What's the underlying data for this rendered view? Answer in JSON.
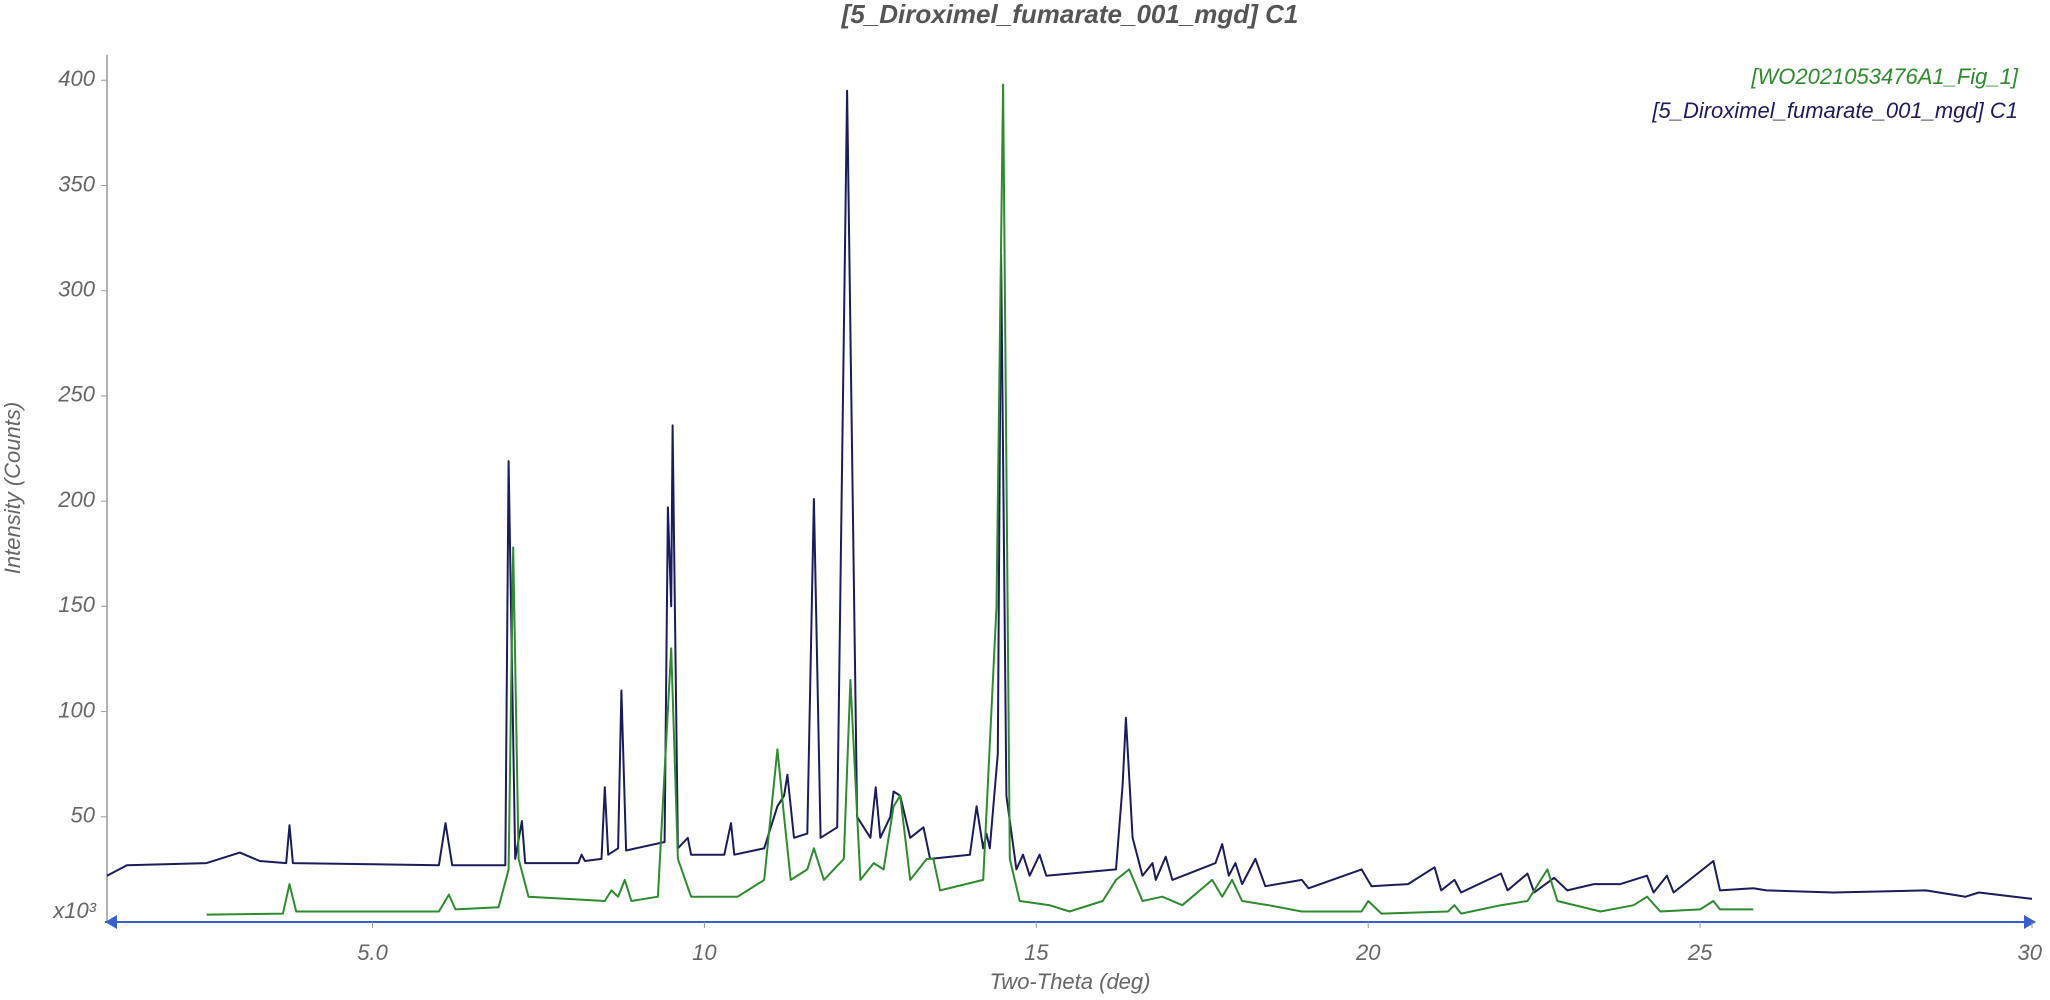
{
  "chart_data": {
    "type": "line",
    "title": "[5_Diroximel_fumarate_001_mgd] C1",
    "x_label": "Two-Theta (deg)",
    "y_label": "Intensity (Counts)",
    "y_multiplier": "x10³",
    "xlim": [
      1,
      30
    ],
    "ylim": [
      0,
      412
    ],
    "xticks": [
      {
        "value": 5,
        "label": "5.0"
      },
      10,
      15,
      20,
      25,
      30
    ],
    "yticks": [
      50,
      100,
      150,
      200,
      250,
      300,
      350,
      400
    ],
    "legend": "top-right",
    "series": [
      {
        "name": "[WO2021053476A1_Fig_1]",
        "color": "#2e8b2e",
        "x": [
          2.5,
          3.65,
          3.75,
          3.85,
          6.0,
          6.15,
          6.25,
          6.9,
          7.05,
          7.12,
          7.2,
          7.35,
          8.5,
          8.6,
          8.7,
          8.8,
          8.9,
          9.3,
          9.5,
          9.6,
          9.8,
          10.5,
          10.9,
          11.1,
          11.2,
          11.3,
          11.55,
          11.65,
          11.8,
          12.1,
          12.2,
          12.35,
          12.55,
          12.7,
          12.85,
          12.95,
          13.1,
          13.35,
          13.45,
          13.55,
          14.2,
          14.4,
          14.5,
          14.6,
          14.75,
          15.2,
          15.5,
          16.0,
          16.2,
          16.4,
          16.6,
          16.9,
          17.2,
          17.65,
          17.8,
          17.95,
          18.1,
          18.5,
          19.0,
          19.9,
          20.0,
          20.2,
          21.2,
          21.3,
          21.4,
          22.0,
          22.4,
          22.6,
          22.7,
          22.85,
          23.5,
          24.0,
          24.2,
          24.4,
          25.0,
          25.2,
          25.3,
          25.8
        ],
        "values": [
          3.5,
          4,
          18,
          5,
          5,
          13,
          6,
          7,
          25,
          178,
          30,
          12,
          10,
          15,
          12,
          20,
          10,
          12,
          130,
          30,
          12,
          12,
          20,
          82,
          50,
          20,
          25,
          35,
          20,
          30,
          115,
          20,
          28,
          25,
          55,
          60,
          20,
          30,
          30,
          15,
          20,
          150,
          398,
          30,
          10,
          8,
          5,
          10,
          20,
          25,
          10,
          12,
          8,
          20,
          12,
          20,
          10,
          8,
          5,
          5,
          10,
          4,
          5,
          8,
          4,
          8,
          10,
          20,
          25,
          10,
          5,
          8,
          12,
          5,
          6,
          10,
          6,
          6
        ]
      },
      {
        "name": "[5_Diroximel_fumarate_001_mgd] C1",
        "color": "#1c1c5c",
        "x": [
          1.0,
          1.3,
          2.5,
          3.0,
          3.3,
          3.7,
          3.75,
          3.8,
          6.0,
          6.1,
          6.2,
          7.0,
          7.05,
          7.15,
          7.25,
          7.3,
          8.1,
          8.15,
          8.2,
          8.45,
          8.5,
          8.55,
          8.7,
          8.75,
          8.82,
          9.4,
          9.45,
          9.5,
          9.52,
          9.6,
          9.75,
          9.8,
          10.3,
          10.4,
          10.45,
          10.9,
          11.1,
          11.2,
          11.25,
          11.35,
          11.55,
          11.65,
          11.75,
          12.0,
          12.15,
          12.3,
          12.5,
          12.58,
          12.65,
          12.8,
          12.85,
          12.95,
          13.1,
          13.3,
          13.4,
          14.0,
          14.1,
          14.2,
          14.25,
          14.3,
          14.42,
          14.47,
          14.55,
          14.7,
          14.8,
          14.9,
          15.05,
          15.15,
          16.2,
          16.3,
          16.35,
          16.45,
          16.6,
          16.75,
          16.8,
          16.95,
          17.05,
          17.7,
          17.8,
          17.9,
          18.0,
          18.1,
          18.3,
          18.45,
          19.0,
          19.1,
          19.9,
          20.05,
          20.6,
          21.0,
          21.1,
          21.3,
          21.4,
          22.0,
          22.1,
          22.4,
          22.5,
          22.8,
          23.0,
          23.4,
          23.8,
          24.2,
          24.3,
          24.5,
          24.6,
          25.2,
          25.3,
          25.8,
          26.0,
          27.0,
          28.4,
          29.0,
          29.2,
          30.0
        ],
        "values": [
          22,
          27,
          28,
          33,
          29,
          28,
          46,
          28,
          27,
          47,
          27,
          27,
          219,
          30,
          48,
          28,
          28,
          32,
          29,
          30,
          64,
          32,
          35,
          110,
          34,
          38,
          197,
          150,
          236,
          35,
          40,
          32,
          32,
          47,
          32,
          35,
          55,
          60,
          70,
          40,
          42,
          201,
          40,
          45,
          395,
          50,
          40,
          64,
          40,
          50,
          62,
          60,
          40,
          45,
          30,
          32,
          55,
          35,
          42,
          35,
          80,
          317,
          60,
          25,
          32,
          22,
          32,
          22,
          25,
          65,
          97,
          40,
          22,
          28,
          20,
          31,
          20,
          28,
          37,
          22,
          28,
          18,
          30,
          17,
          20,
          16,
          25,
          17,
          18,
          26,
          15,
          20,
          14,
          23,
          15,
          23,
          14,
          21,
          15,
          18,
          18,
          22,
          14,
          22,
          14,
          29,
          15,
          16,
          15,
          14,
          15,
          12,
          14,
          11
        ]
      }
    ]
  }
}
